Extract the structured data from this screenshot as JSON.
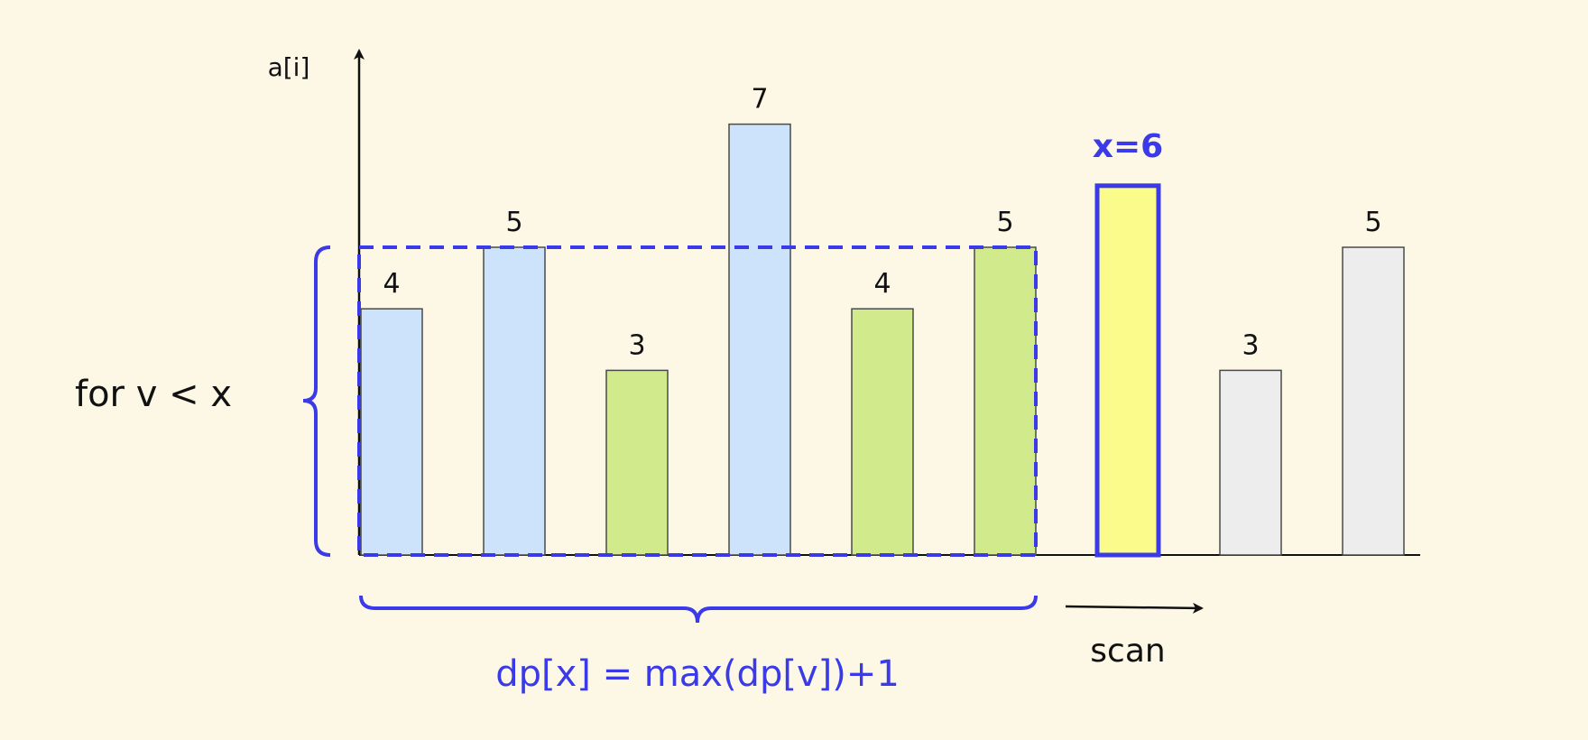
{
  "colors": {
    "background": "#fdf8e6",
    "accent": "#3a3ae8",
    "processed_blue": "#cce3fb",
    "candidate_green": "#d0ea8c",
    "current_yellow": "#fbfb8c",
    "unprocessed_gray": "#ededed",
    "bar_stroke": "#4a4a4a",
    "axis": "#111111"
  },
  "axis": {
    "y_label": "a[i]"
  },
  "chart_data": {
    "type": "bar",
    "values": [
      4,
      5,
      3,
      7,
      4,
      5,
      6,
      3,
      5
    ],
    "value_labels": [
      "4",
      "5",
      "3",
      "7",
      "4",
      "5",
      "x=6",
      "3",
      "5"
    ],
    "states": [
      "processed",
      "processed",
      "candidate",
      "processed",
      "candidate",
      "candidate",
      "current",
      "unprocessed",
      "unprocessed"
    ],
    "ylim": [
      0,
      7
    ]
  },
  "annotations": {
    "condition": "for v < x",
    "formula": "dp[x] = max(dp[v])+1",
    "scan": "scan"
  }
}
